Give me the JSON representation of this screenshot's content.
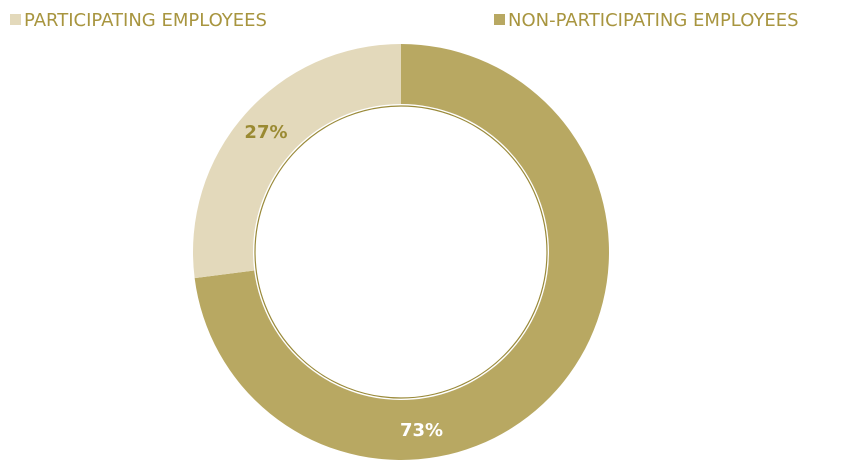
{
  "chart_data": {
    "type": "donut",
    "categories": [
      "PARTICIPATING EMPLOYEES",
      "NON-PARTICIPATING EMPLOYEES"
    ],
    "values": [
      27,
      73
    ],
    "value_labels": [
      "27%",
      "73%"
    ],
    "colors": [
      "#e3d9bb",
      "#b8a862"
    ],
    "legend": "top"
  }
}
